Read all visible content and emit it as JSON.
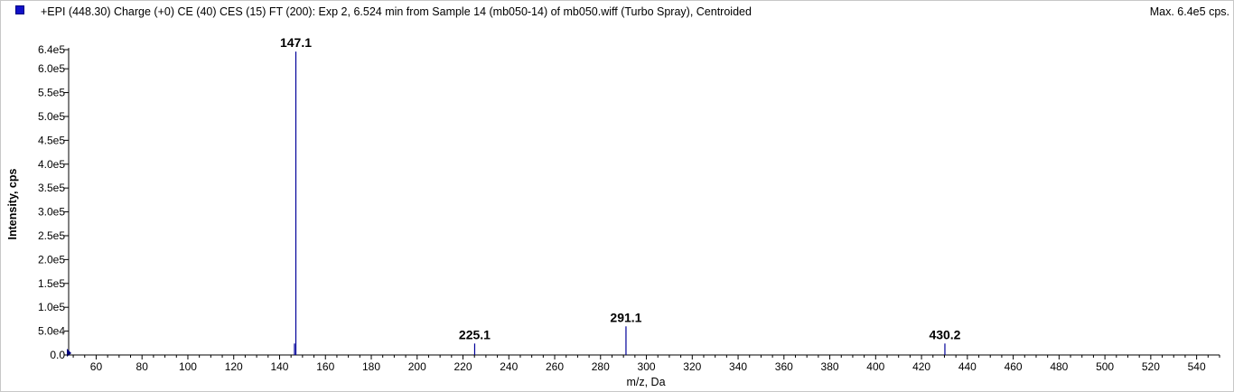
{
  "header": {
    "title": "+EPI (448.30) Charge (+0) CE (40) CES (15) FT (200): Exp 2, 6.524 min from Sample 14 (mb050-14) of mb050.wiff (Turbo Spray), Centroided",
    "max_label": "Max. 6.4e5 cps."
  },
  "colors": {
    "series": "#000099",
    "legend_square": "#1010c8",
    "axis": "#000000"
  },
  "chart_data": {
    "type": "bar",
    "title": "+EPI (448.30) Charge (+0) CE (40) CES (15) FT (200): Exp 2, 6.524 min from Sample 14 (mb050-14) of mb050.wiff (Turbo Spray), Centroided",
    "xlabel": "m/z, Da",
    "ylabel": "Intensity, cps",
    "xlim": [
      48,
      550
    ],
    "ylim": [
      0,
      640000
    ],
    "x_ticks": [
      60,
      80,
      100,
      120,
      140,
      160,
      180,
      200,
      220,
      240,
      260,
      280,
      300,
      320,
      340,
      360,
      380,
      400,
      420,
      440,
      460,
      480,
      500,
      520,
      540
    ],
    "y_ticks": [
      {
        "value": 0,
        "label": "0.0"
      },
      {
        "value": 50000,
        "label": "5.0e4"
      },
      {
        "value": 100000,
        "label": "1.0e5"
      },
      {
        "value": 150000,
        "label": "1.5e5"
      },
      {
        "value": 200000,
        "label": "2.0e5"
      },
      {
        "value": 250000,
        "label": "2.5e5"
      },
      {
        "value": 300000,
        "label": "3.0e5"
      },
      {
        "value": 350000,
        "label": "3.5e5"
      },
      {
        "value": 400000,
        "label": "4.0e5"
      },
      {
        "value": 450000,
        "label": "4.5e5"
      },
      {
        "value": 500000,
        "label": "5.0e5"
      },
      {
        "value": 550000,
        "label": "5.5e5"
      },
      {
        "value": 600000,
        "label": "6.0e5"
      },
      {
        "value": 640000,
        "label": "6.4e5"
      }
    ],
    "peaks": [
      {
        "mz": 146.5,
        "intensity": 24000,
        "label": ""
      },
      {
        "mz": 147.1,
        "intensity": 636000,
        "label": "147.1"
      },
      {
        "mz": 225.1,
        "intensity": 24000,
        "label": "225.1"
      },
      {
        "mz": 291.1,
        "intensity": 60000,
        "label": "291.1"
      },
      {
        "mz": 430.2,
        "intensity": 24000,
        "label": "430.2"
      }
    ],
    "grid": false,
    "legend": "top-left"
  }
}
